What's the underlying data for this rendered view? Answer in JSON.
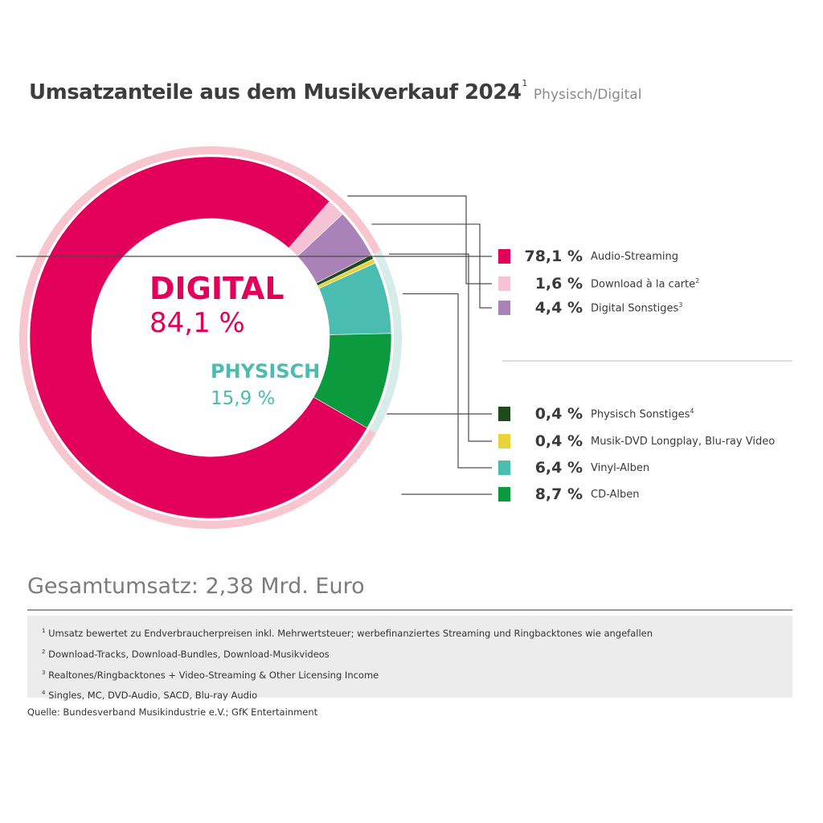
{
  "header": {
    "title": "Umsatzanteile aus dem Musikverkauf 2024",
    "title_footnote": "1",
    "subtitle": "Physisch/Digital"
  },
  "center": {
    "digital_label": "DIGITAL",
    "digital_value": "84,1 %",
    "physisch_label": "PHYSISCH",
    "physisch_value": "15,9 %"
  },
  "colors": {
    "digital": "#e3005b",
    "physisch": "#4bbcb0",
    "digital_ring": "#f7c6cf",
    "physisch_ring": "#d5ece8"
  },
  "chart_data": {
    "type": "pie",
    "title": "Umsatzanteile aus dem Musikverkauf 2024",
    "groups": [
      {
        "name": "DIGITAL",
        "value": 84.1,
        "display": "84,1 %"
      },
      {
        "name": "PHYSISCH",
        "value": 15.9,
        "display": "15,9 %"
      }
    ],
    "slices": [
      {
        "label": "Audio-Streaming",
        "footnote": "",
        "value": 78.1,
        "display": "78,1 %",
        "color": "#e3005b",
        "group": "DIGITAL"
      },
      {
        "label": "Download à la carte",
        "footnote": "2",
        "value": 1.6,
        "display": "1,6 %",
        "color": "#f6c2d5",
        "group": "DIGITAL"
      },
      {
        "label": "Digital Sonstiges",
        "footnote": "3",
        "value": 4.4,
        "display": "4,4 %",
        "color": "#a983b8",
        "group": "DIGITAL"
      },
      {
        "label": "Physisch Sonstiges",
        "footnote": "4",
        "value": 0.4,
        "display": "0,4 %",
        "color": "#1f4a1c",
        "group": "PHYSISCH"
      },
      {
        "label": "Musik-DVD Longplay, Blu-ray Video",
        "footnote": "",
        "value": 0.4,
        "display": "0,4 %",
        "color": "#e8d33f",
        "group": "PHYSISCH"
      },
      {
        "label": "Vinyl-Alben",
        "footnote": "",
        "value": 6.4,
        "display": "6,4 %",
        "color": "#4bbcb0",
        "group": "PHYSISCH"
      },
      {
        "label": "CD-Alben",
        "footnote": "",
        "value": 8.7,
        "display": "8,7 %",
        "color": "#0c9a3e",
        "group": "PHYSISCH"
      }
    ]
  },
  "total": "Gesamtumsatz: 2,38 Mrd. Euro",
  "footnotes": [
    {
      "num": "1",
      "text": "Umsatz bewertet zu Endverbraucherpreisen inkl. Mehrwertsteuer; werbefinanziertes Streaming und Ringbacktones wie angefallen"
    },
    {
      "num": "2",
      "text": "Download-Tracks, Download-Bundles, Download-Musikvideos"
    },
    {
      "num": "3",
      "text": "Realtones/Ringbacktones + Video-Streaming & Other Licensing Income"
    },
    {
      "num": "4",
      "text": "Singles, MC, DVD-Audio, SACD, Blu-ray Audio"
    }
  ],
  "source": "Quelle: Bundesverband Musikindustrie e.V.; GfK Entertainment"
}
